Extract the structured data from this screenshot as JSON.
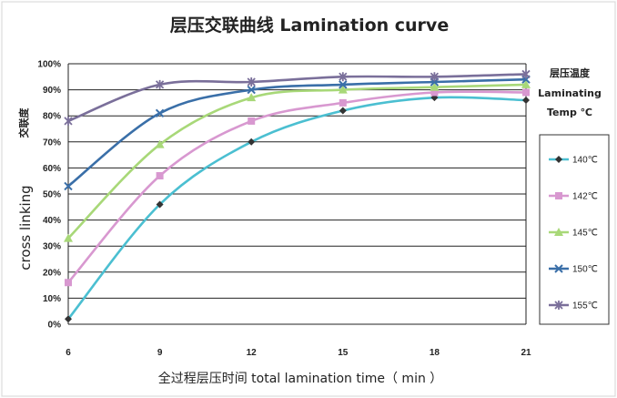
{
  "chart_data": {
    "type": "line",
    "title": "层压交联曲线 Lamination curve",
    "xlabel": "全过程层压时间 total lamination time（ min ）",
    "ylabel": "cross linking",
    "ylabel_cn": "交联度",
    "x": [
      6,
      9,
      12,
      15,
      18,
      21
    ],
    "x_ticks": [
      "6",
      "9",
      "12",
      "15",
      "18",
      "21"
    ],
    "xlim": [
      6,
      21
    ],
    "ylim": [
      0,
      100
    ],
    "y_ticks": [
      "0%",
      "10%",
      "20%",
      "30%",
      "40%",
      "50%",
      "60%",
      "70%",
      "80%",
      "90%",
      "100%"
    ],
    "grid": "horizontal",
    "legend": {
      "position": "right",
      "title_lines": [
        "层压温度",
        "Laminating",
        "Temp ℃"
      ]
    },
    "series": [
      {
        "name": "140℃",
        "color": "#4bbfd1",
        "marker": "diamond",
        "values": [
          2,
          46,
          70,
          82,
          87,
          86
        ]
      },
      {
        "name": "142℃",
        "color": "#d898d0",
        "marker": "square",
        "values": [
          16,
          57,
          78,
          85,
          89,
          89
        ]
      },
      {
        "name": "145℃",
        "color": "#a8d878",
        "marker": "triangle",
        "values": [
          33,
          69,
          87,
          90,
          91,
          92
        ]
      },
      {
        "name": "150℃",
        "color": "#3a6fa8",
        "marker": "x",
        "values": [
          53,
          81,
          90,
          92,
          93,
          94
        ]
      },
      {
        "name": "155℃",
        "color": "#7a6f9a",
        "marker": "star",
        "values": [
          78,
          92,
          93,
          95,
          95,
          96
        ]
      }
    ]
  }
}
